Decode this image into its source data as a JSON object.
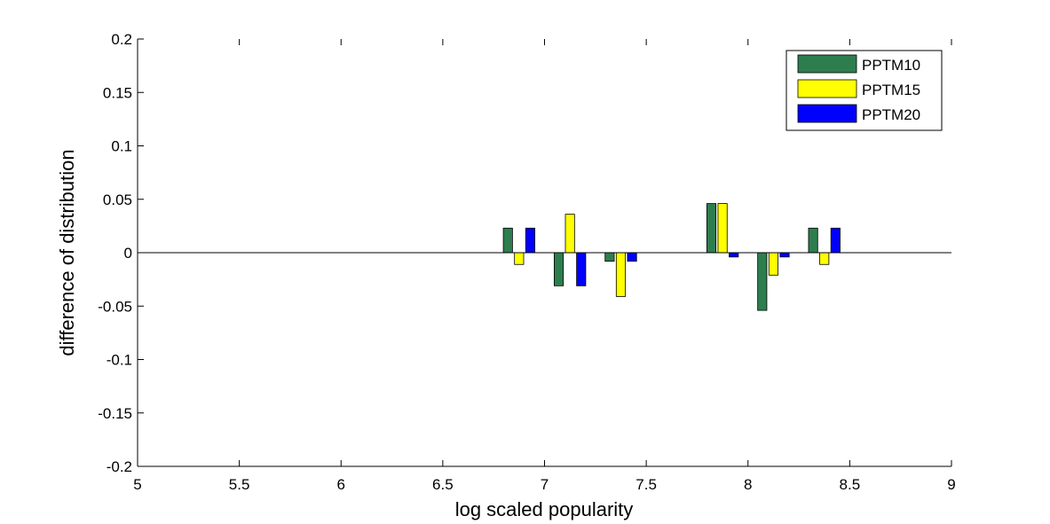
{
  "chart_data": {
    "type": "bar",
    "xlabel": "log scaled popularity",
    "ylabel": "difference of distribution",
    "xlim": [
      5,
      9
    ],
    "ylim": [
      -0.2,
      0.2
    ],
    "x_ticks": [
      "5",
      "5.5",
      "6",
      "6.5",
      "7",
      "7.5",
      "8",
      "8.5",
      "9"
    ],
    "y_ticks": [
      "0.2",
      "0.15",
      "0.1",
      "0.05",
      "0",
      "-0.05",
      "-0.1",
      "-0.15",
      "-0.2"
    ],
    "x": [
      6.875,
      7.125,
      7.375,
      7.875,
      8.125,
      8.375
    ],
    "series": [
      {
        "name": "PPTM10",
        "color": "#2e7d4f",
        "values": [
          0.023,
          -0.031,
          -0.008,
          0.046,
          -0.054,
          0.023
        ]
      },
      {
        "name": "PPTM15",
        "color": "#ffff00",
        "values": [
          -0.011,
          0.036,
          -0.041,
          0.046,
          -0.021,
          -0.011
        ]
      },
      {
        "name": "PPTM20",
        "color": "#0000ff",
        "values": [
          0.023,
          -0.031,
          -0.008,
          -0.004,
          -0.004,
          0.023
        ]
      }
    ],
    "legend": {
      "position": "top-right"
    },
    "grid": false
  }
}
